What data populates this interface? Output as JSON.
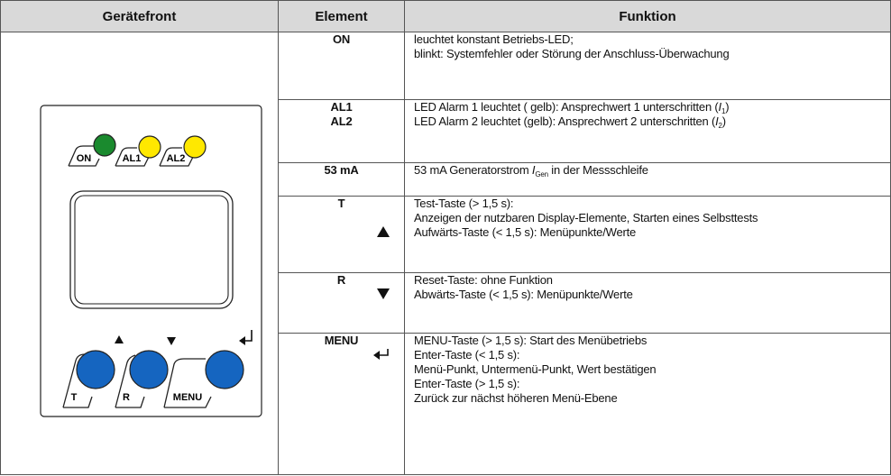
{
  "header": {
    "columns": [
      "Gerätefront",
      "Element",
      "Funktion"
    ]
  },
  "device": {
    "labels": [
      "ON",
      "AL1",
      "AL2",
      "T",
      "R",
      "MENU"
    ]
  },
  "table": {
    "rows": [
      {
        "element": [
          "ON"
        ],
        "function": [
          [
            "leuchtet konstant Betriebs-LED;"
          ],
          [
            "blinkt: Systemfehler oder Störung der Anschluss-Überwachung"
          ]
        ]
      },
      {
        "element": [
          "AL1",
          "AL2"
        ],
        "function": [
          [
            "LED Alarm 1 leuchtet ( gelb): Ansprechwert 1 unterschritten (",
            "I",
            "1",
            ")"
          ],
          [
            "LED Alarm 2 leuchtet (gelb): Ansprechwert 2 unterschritten (",
            "I",
            "2",
            ")"
          ]
        ]
      },
      {
        "element": [
          "53 mA"
        ],
        "function": [
          [
            "53 mA Generatorstrom ",
            "I",
            "Gen",
            " in der Messschleife"
          ]
        ]
      },
      {
        "element": [
          "T"
        ],
        "function": [
          [
            "Test-Taste (> 1,5 s):"
          ],
          [
            "Anzeigen der nutzbaren Display-Elemente, Starten eines Selbsttests"
          ],
          [
            "Aufwärts-Taste (< 1,5 s): Menüpunkte/Werte"
          ]
        ]
      },
      {
        "element": [
          "R"
        ],
        "function": [
          [
            "Reset-Taste: ohne Funktion"
          ],
          [
            "Abwärts-Taste (< 1,5 s): Menüpunkte/Werte"
          ]
        ]
      },
      {
        "element": [
          "MENU"
        ],
        "function": [
          [
            "MENU-Taste (> 1,5 s): Start des Menübetriebs"
          ],
          [
            "Enter-Taste (< 1,5 s):"
          ],
          [
            "Menü-Punkt, Untermenü-Punkt, Wert bestätigen"
          ],
          [
            "Enter-Taste (> 1,5 s):"
          ],
          [
            "Zurück zur nächst höheren Menü-Ebene"
          ]
        ]
      }
    ]
  }
}
